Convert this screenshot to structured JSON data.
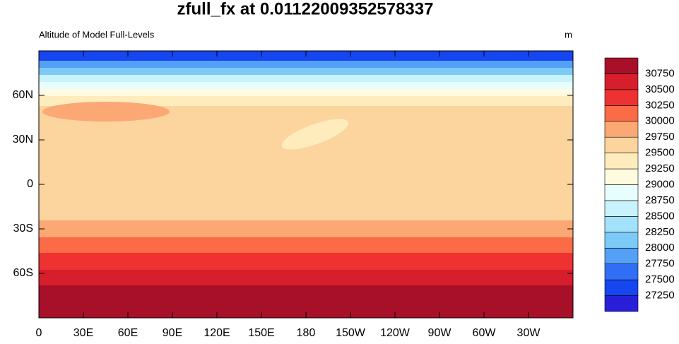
{
  "chart_data": {
    "type": "map",
    "title": "zfull_fx at 0.01122009352578337",
    "subtitle": "Altitude of Model Full-Levels",
    "units": "m",
    "xlim": [
      0,
      360
    ],
    "ylim": [
      -90,
      90
    ],
    "xticks": [
      0,
      {
        "value": 30,
        "label": "30E"
      },
      {
        "value": 60,
        "label": "60E"
      },
      {
        "value": 90,
        "label": "90E"
      },
      {
        "value": 120,
        "label": "120E"
      },
      {
        "value": 150,
        "label": "150E"
      },
      180,
      {
        "value": 210,
        "label": "150W"
      },
      {
        "value": 240,
        "label": "120W"
      },
      {
        "value": 270,
        "label": "90W"
      },
      {
        "value": 300,
        "label": "60W"
      },
      {
        "value": 330,
        "label": "30W"
      }
    ],
    "yticks": [
      {
        "value": -60,
        "label": "60S"
      },
      {
        "value": -30,
        "label": "30S"
      },
      0,
      {
        "value": 30,
        "label": "30N"
      },
      {
        "value": 60,
        "label": "60N"
      }
    ],
    "colorbar": {
      "levels": [
        27250,
        27500,
        27750,
        28000,
        28250,
        28500,
        28750,
        29000,
        29250,
        29500,
        29750,
        30000,
        30250,
        30500,
        30750
      ],
      "colors": [
        "#2a1fd8",
        "#1646f0",
        "#2f6ef5",
        "#55a0f7",
        "#7ccaf8",
        "#a2e2fb",
        "#c8f3fc",
        "#e8fdfd",
        "#fffbe0",
        "#feecbc",
        "#fcd49e",
        "#fba874",
        "#fb6b45",
        "#ee3232",
        "#d61e2c",
        "#a8102a"
      ]
    }
  }
}
